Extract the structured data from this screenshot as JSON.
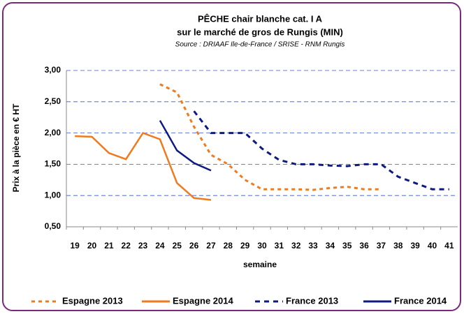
{
  "chart_data": {
    "type": "line",
    "title": "PÊCHE chair blanche cat. I A",
    "subtitle": "sur le marché de gros de Rungis (MIN)",
    "source": "Source : DRIAAF Ile-de-France / SRISE - RNM Rungis",
    "x_label": "semaine",
    "y_label": "Prix à la pièce en € HT",
    "categories": [
      "19",
      "20",
      "21",
      "22",
      "23",
      "24",
      "25",
      "26",
      "27",
      "28",
      "29",
      "30",
      "31",
      "32",
      "33",
      "34",
      "35",
      "36",
      "37",
      "38",
      "39",
      "40",
      "41"
    ],
    "series": [
      {
        "name": "Espagne 2013",
        "color": "#f07a1e",
        "dash": "dotted",
        "values": [
          null,
          null,
          null,
          null,
          null,
          2.78,
          2.65,
          2.1,
          1.65,
          1.5,
          1.25,
          1.1,
          1.1,
          1.1,
          1.09,
          1.12,
          1.14,
          1.1,
          1.1,
          null,
          null,
          null,
          null
        ]
      },
      {
        "name": "Espagne 2014",
        "color": "#f07a1e",
        "dash": "solid",
        "values": [
          1.95,
          1.94,
          1.68,
          1.58,
          2.0,
          1.9,
          1.2,
          0.96,
          0.93,
          null,
          null,
          null,
          null,
          null,
          null,
          null,
          null,
          null,
          null,
          null,
          null,
          null,
          null
        ]
      },
      {
        "name": "France 2013",
        "color": "#0d1a80",
        "dash": "dashed",
        "values": [
          null,
          null,
          null,
          null,
          null,
          null,
          null,
          2.35,
          2.0,
          2.0,
          2.0,
          1.75,
          1.57,
          1.5,
          1.5,
          1.48,
          1.47,
          1.5,
          1.5,
          1.3,
          1.2,
          1.1,
          1.1
        ]
      },
      {
        "name": "France 2014",
        "color": "#0d1a80",
        "dash": "solid",
        "values": [
          null,
          null,
          null,
          null,
          null,
          2.2,
          1.72,
          1.52,
          1.4,
          null,
          null,
          null,
          null,
          null,
          null,
          null,
          null,
          null,
          null,
          null,
          null,
          null,
          null
        ]
      }
    ],
    "ylim": [
      0.5,
      3.0
    ],
    "yticks": [
      {
        "value": 0.5,
        "label": "0,50"
      },
      {
        "value": 1.0,
        "label": "1,00"
      },
      {
        "value": 1.5,
        "label": "1,50"
      },
      {
        "value": 2.0,
        "label": "2,00"
      },
      {
        "value": 2.5,
        "label": "2,50"
      },
      {
        "value": 3.0,
        "label": "3,00"
      }
    ],
    "grid": true,
    "legend": "bottom"
  }
}
